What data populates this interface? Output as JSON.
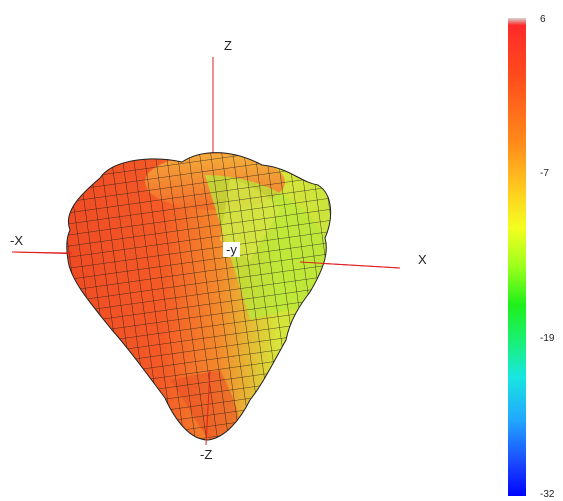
{
  "axes": {
    "z_label": "Z",
    "neg_z_label": "-Z",
    "x_label": "X",
    "neg_x_label": "-X",
    "neg_y_label": "-y"
  },
  "colorbar": {
    "ticks": [
      "6",
      "-7",
      "-19",
      "-32"
    ],
    "stops": [
      "#d7d7d7",
      "#ff2a2a",
      "#ff8a1a",
      "#f3ff20",
      "#1ef01a",
      "#18e6e0",
      "#1b49ff",
      "#0004ff"
    ]
  },
  "colors": {
    "axis_line": "#e02020",
    "mesh_line": "#1a1a1a",
    "surface_front": "#f25a2a",
    "surface_right": "#b8e83a",
    "surface_top": "#f2a030"
  }
}
